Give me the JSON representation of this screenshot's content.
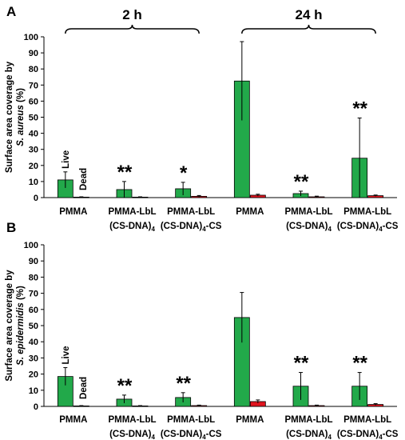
{
  "colors": {
    "live": "#22a94a",
    "dead": "#e0141e",
    "stroke": "#000000"
  },
  "chart_data": [
    {
      "panel": "A",
      "type": "bar",
      "ylabel_line1": "Surface area coverage by",
      "ylabel_line2_species": "S. aureus",
      "ylabel_line2_unit": "(%)",
      "ylim": [
        0,
        100
      ],
      "yticks": [
        0,
        10,
        20,
        30,
        40,
        50,
        60,
        70,
        80,
        90,
        100
      ],
      "groups": [
        {
          "label": "2 h",
          "span": [
            0,
            2
          ]
        },
        {
          "label": "24 h",
          "span": [
            3,
            5
          ]
        }
      ],
      "categories": [
        {
          "line1": "PMMA",
          "line2": "",
          "sub": "",
          "suffix": ""
        },
        {
          "line1": "PMMA-LbL",
          "line2": "(CS-DNA)",
          "sub": "4",
          "suffix": ""
        },
        {
          "line1": "PMMA-LbL",
          "line2": "(CS-DNA)",
          "sub": "4",
          "suffix": "-CS"
        },
        {
          "line1": "PMMA",
          "line2": "",
          "sub": "",
          "suffix": ""
        },
        {
          "line1": "PMMA-LbL",
          "line2": "(CS-DNA)",
          "sub": "4",
          "suffix": ""
        },
        {
          "line1": "PMMA-LbL",
          "line2": "(CS-DNA)",
          "sub": "4",
          "suffix": "-CS"
        }
      ],
      "series": [
        {
          "name": "Live",
          "values": [
            11,
            5,
            5.5,
            72.5,
            2.5,
            24.5
          ],
          "errors": [
            5,
            5,
            4,
            24.5,
            1.5,
            25
          ]
        },
        {
          "name": "Dead",
          "values": [
            0.3,
            0.3,
            0.8,
            1.5,
            0.5,
            1.2
          ],
          "errors": [
            0.2,
            0.2,
            0.5,
            0.6,
            0.4,
            0.4
          ]
        }
      ],
      "significance": [
        "",
        "**",
        "*",
        "",
        "**",
        "**"
      ],
      "series_labels_on_category": 0
    },
    {
      "panel": "B",
      "type": "bar",
      "ylabel_line1": "Surface area coverage by",
      "ylabel_line2_species": "S. epidermidis",
      "ylabel_line2_unit": "(%)",
      "ylim": [
        0,
        100
      ],
      "yticks": [
        0,
        10,
        20,
        30,
        40,
        50,
        60,
        70,
        80,
        90,
        100
      ],
      "groups": [],
      "categories": [
        {
          "line1": "PMMA",
          "line2": "",
          "sub": "",
          "suffix": ""
        },
        {
          "line1": "PMMA-LbL",
          "line2": "(CS-DNA)",
          "sub": "4",
          "suffix": ""
        },
        {
          "line1": "PMMA-LbL",
          "line2": "(CS-DNA)",
          "sub": "4",
          "suffix": "-CS"
        },
        {
          "line1": "PMMA",
          "line2": "",
          "sub": "",
          "suffix": ""
        },
        {
          "line1": "PMMA-LbL",
          "line2": "(CS-DNA)",
          "sub": "4",
          "suffix": ""
        },
        {
          "line1": "PMMA-LbL",
          "line2": "(CS-DNA)",
          "sub": "4",
          "suffix": "-CS"
        }
      ],
      "series": [
        {
          "name": "Live",
          "values": [
            18.5,
            4.5,
            5.5,
            55,
            12.5,
            12.5
          ],
          "errors": [
            5.5,
            2.5,
            3,
            15.5,
            8.5,
            8.5
          ]
        },
        {
          "name": "Dead",
          "values": [
            0.3,
            0.3,
            0.5,
            3,
            0.5,
            1.2
          ],
          "errors": [
            0.2,
            0.2,
            0.3,
            1,
            0.3,
            0.5
          ]
        }
      ],
      "significance": [
        "",
        "**",
        "**",
        "",
        "**",
        "**"
      ],
      "series_labels_on_category": 0
    }
  ]
}
